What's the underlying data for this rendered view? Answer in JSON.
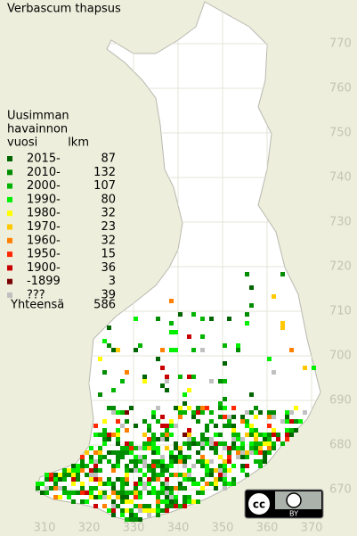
{
  "title": "Verbascum thapsus",
  "legend": {
    "header": [
      "Uusimman",
      "havainnon",
      "vuosi"
    ],
    "count_header": "lkm",
    "entries": [
      {
        "label": "2015-",
        "color": "#006400",
        "count": 87
      },
      {
        "label": "2010-",
        "color": "#008c00",
        "count": 132
      },
      {
        "label": "2000-",
        "color": "#00b400",
        "count": 107
      },
      {
        "label": "1990-",
        "color": "#00f000",
        "count": 80
      },
      {
        "label": "1980-",
        "color": "#ffff00",
        "count": 32
      },
      {
        "label": "1970-",
        "color": "#ffc800",
        "count": 23
      },
      {
        "label": "1960-",
        "color": "#ff8000",
        "count": 32
      },
      {
        "label": "1950-",
        "color": "#ff2800",
        "count": 15
      },
      {
        "label": "1900-",
        "color": "#c80000",
        "count": 36
      },
      {
        "label": "-1899",
        "color": "#780000",
        "count": 3
      },
      {
        "label": "???",
        "color": "#c0c0c0",
        "count": 39
      }
    ],
    "total_label": "Yhteensä",
    "total": 586
  },
  "grid": {
    "x_ticks": [
      310,
      320,
      330,
      340,
      350,
      360,
      370
    ],
    "y_ticks": [
      670,
      680,
      690,
      700,
      710,
      720,
      730,
      740,
      750,
      760,
      770
    ]
  },
  "license": {
    "icon": "cc",
    "by": "BY"
  }
}
